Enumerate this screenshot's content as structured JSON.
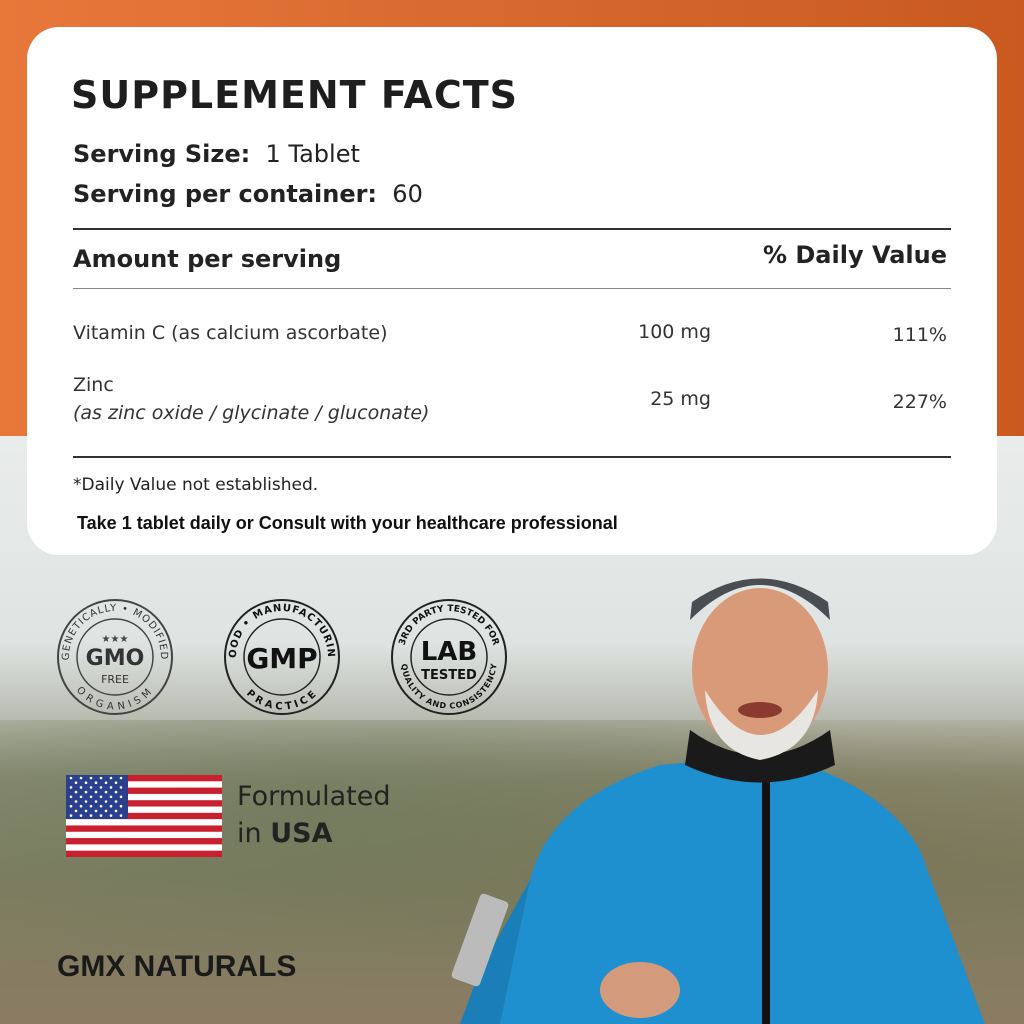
{
  "facts": {
    "title": "SUPPLEMENT FACTS",
    "serving_size_label": "Serving Size:",
    "serving_size_value": "1 Tablet",
    "servings_label": "Serving per container:",
    "servings_value": "60",
    "amount_header": "Amount per serving",
    "dv_header": "% Daily Value",
    "rows": [
      {
        "name": "Vitamin C (as calcium ascorbate)",
        "detail": "",
        "amount": "100 mg",
        "dv": "111%"
      },
      {
        "name": "Zinc",
        "detail": "(as zinc oxide / glycinate / gluconate)",
        "amount": "25 mg",
        "dv": "227%"
      }
    ],
    "note": "*Daily Value not established.",
    "directions": "Take 1 tablet daily or Consult with your healthcare professional"
  },
  "badges": [
    {
      "center": "GMO",
      "sub": "FREE",
      "ring_top": "GENETICALLY • MODIFIED",
      "ring_bottom": "ORGANISM",
      "icon": "gmo-free-badge"
    },
    {
      "center": "GMP",
      "ring_top": "GOOD • MANUFACTURING",
      "ring_bottom": "PRACTICE",
      "icon": "gmp-badge"
    },
    {
      "center": "LAB",
      "sub": "TESTED",
      "ring_top": "3RD PARTY TESTED FOR",
      "ring_bottom": "QUALITY AND CONSISTENCY",
      "icon": "lab-tested-badge"
    }
  ],
  "origin": {
    "line1": "Formulated",
    "line2_prefix": "in ",
    "line2_bold": "USA",
    "icon": "us-flag-icon"
  },
  "brand": "GMX NATURALS",
  "colors": {
    "orange": "#e0702f",
    "jacket": "#1e8fcf"
  }
}
